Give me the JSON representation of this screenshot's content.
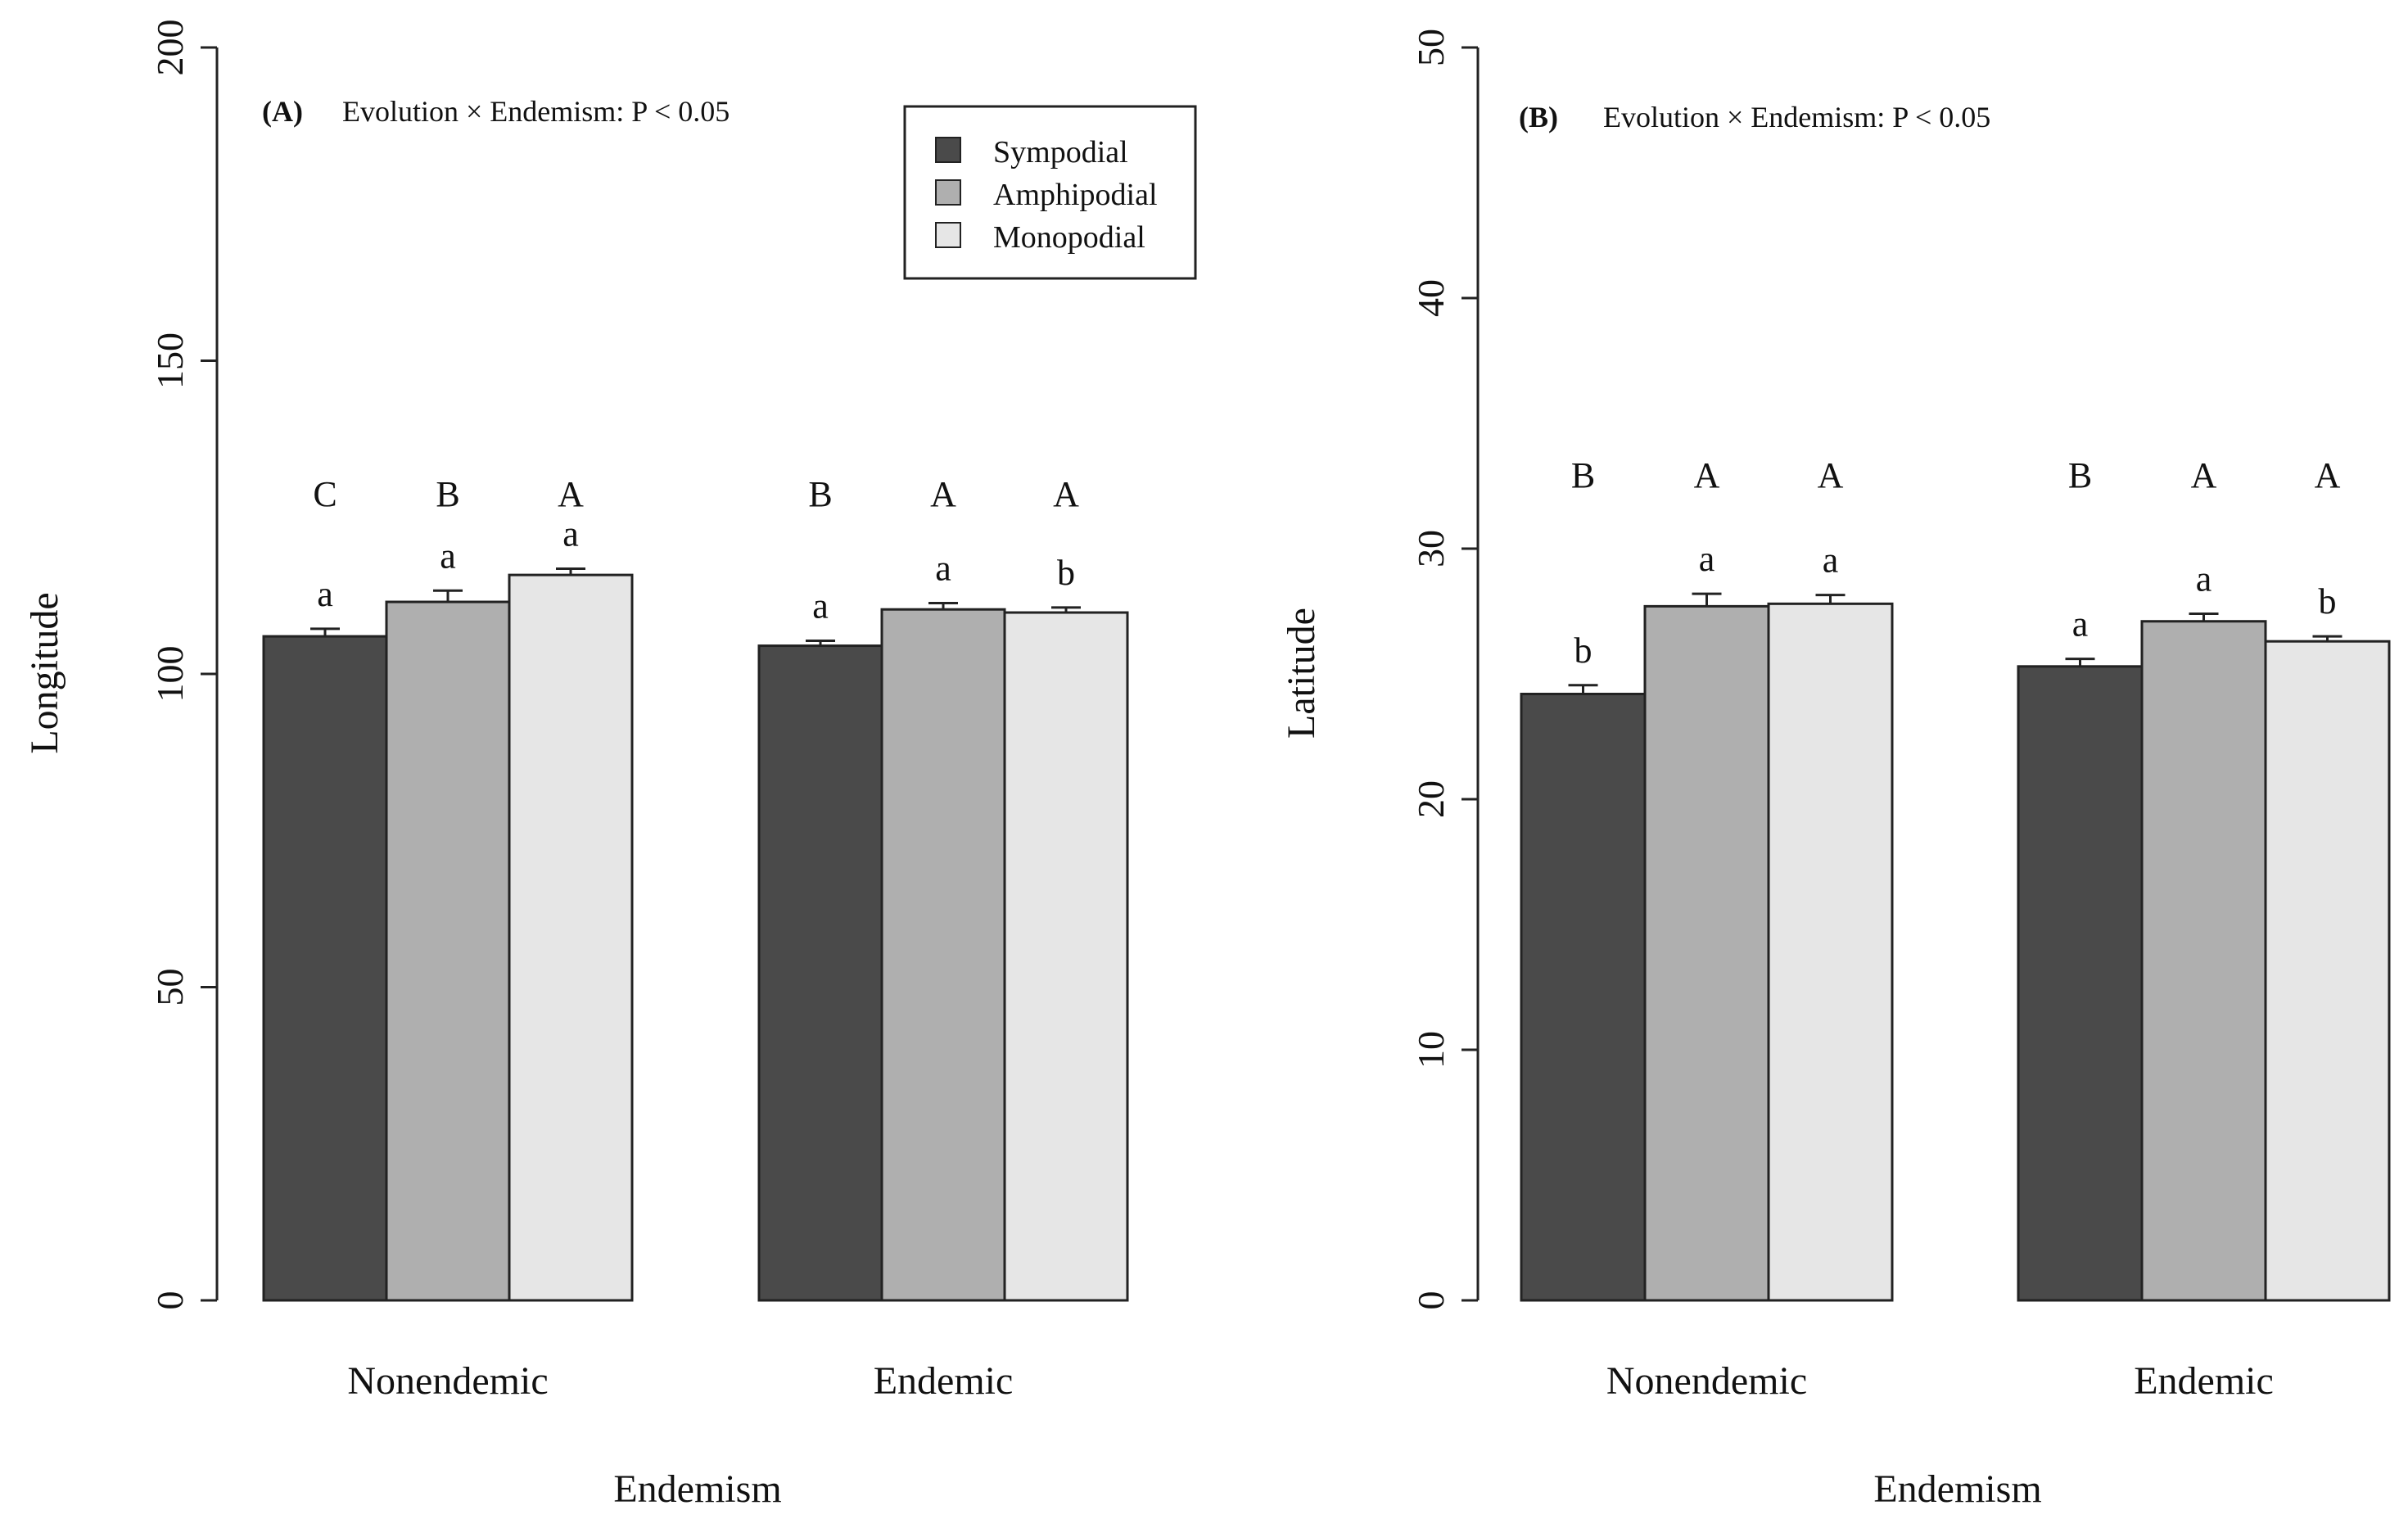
{
  "chart_data": [
    {
      "type": "bar",
      "panel_label": "(A)",
      "annotation": "Evolution × Endemism: P < 0.05",
      "xlabel": "Endemism",
      "ylabel": "Longitude",
      "ylim": [
        0,
        200
      ],
      "yticks": [
        "0",
        "50",
        "100",
        "150",
        "200"
      ],
      "categories": [
        "Nonendemic",
        "Endemic"
      ],
      "series": [
        {
          "name": "Sympodial",
          "color": "#4a4a4a",
          "values": [
            106,
            104.5
          ],
          "errors": [
            1.2,
            0.8
          ]
        },
        {
          "name": "Amphipodial",
          "color": "#afafaf",
          "values": [
            111.5,
            110.3
          ],
          "errors": [
            1.8,
            1.0
          ]
        },
        {
          "name": "Monopodial",
          "color": "#e6e6e6",
          "values": [
            115.8,
            109.8
          ],
          "errors": [
            1.0,
            0.8
          ]
        }
      ],
      "upper_letters": [
        [
          "C",
          "B",
          "A"
        ],
        [
          "B",
          "A",
          "A"
        ]
      ],
      "lower_letters": [
        [
          "a",
          "a",
          "a"
        ],
        [
          "a",
          "a",
          "b"
        ]
      ],
      "legend": {
        "position": "top-center",
        "entries": [
          "Sympodial",
          "Amphipodial",
          "Monopodial"
        ]
      },
      "grid": false
    },
    {
      "type": "bar",
      "panel_label": "(B)",
      "annotation": "Evolution × Endemism: P < 0.05",
      "xlabel": "Endemism",
      "ylabel": "Latitude",
      "ylim": [
        0,
        50
      ],
      "yticks": [
        "0",
        "10",
        "20",
        "30",
        "40",
        "50"
      ],
      "categories": [
        "Nonendemic",
        "Endemic"
      ],
      "series": [
        {
          "name": "Sympodial",
          "color": "#4a4a4a",
          "values": [
            24.2,
            25.3
          ],
          "errors": [
            0.35,
            0.3
          ]
        },
        {
          "name": "Amphipodial",
          "color": "#afafaf",
          "values": [
            27.7,
            27.1
          ],
          "errors": [
            0.5,
            0.3
          ]
        },
        {
          "name": "Monopodial",
          "color": "#e6e6e6",
          "values": [
            27.8,
            26.3
          ],
          "errors": [
            0.35,
            0.2
          ]
        }
      ],
      "upper_letters": [
        [
          "B",
          "A",
          "A"
        ],
        [
          "B",
          "A",
          "A"
        ]
      ],
      "lower_letters": [
        [
          "b",
          "a",
          "a"
        ],
        [
          "a",
          "a",
          "b"
        ]
      ],
      "grid": false
    }
  ]
}
